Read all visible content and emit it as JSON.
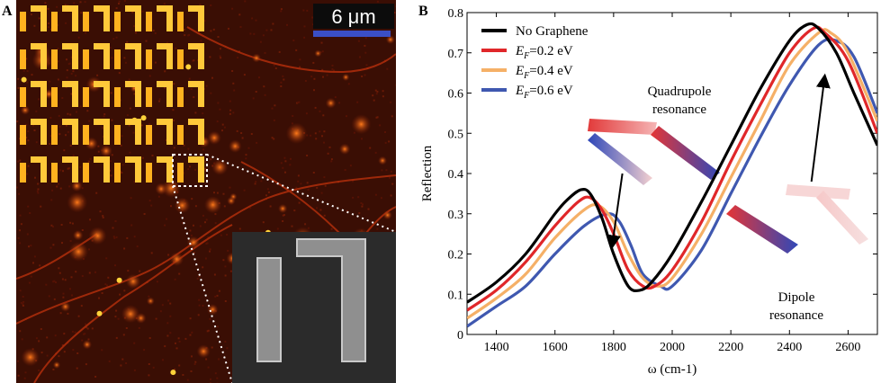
{
  "panel_a": {
    "letter": "A",
    "scale_bar_label": "6 μm",
    "scale_bar_color": "#3a4fc6"
  },
  "panel_b": {
    "letter": "B"
  },
  "chart_data": {
    "type": "line",
    "title": "",
    "xlabel": "ω (cm-1)",
    "ylabel": "Reflection",
    "xlim": [
      1300,
      2700
    ],
    "ylim": [
      0,
      0.8
    ],
    "xticks": [
      1400,
      1600,
      1800,
      2000,
      2200,
      2400,
      2600
    ],
    "yticks": [
      0,
      0.1,
      0.2,
      0.3,
      0.4,
      0.5,
      0.6,
      0.7,
      0.8
    ],
    "legend_position": "top-left",
    "series": [
      {
        "name": "No Graphene",
        "legend_prefix": "",
        "legend_value": "No Graphene",
        "color": "#000000",
        "x": [
          1300,
          1400,
          1500,
          1600,
          1650,
          1690,
          1720,
          1760,
          1800,
          1850,
          1890,
          1930,
          2000,
          2100,
          2200,
          2300,
          2400,
          2460,
          2500,
          2560,
          2620,
          2700
        ],
        "y": [
          0.08,
          0.13,
          0.2,
          0.3,
          0.34,
          0.36,
          0.35,
          0.29,
          0.2,
          0.12,
          0.11,
          0.13,
          0.2,
          0.33,
          0.47,
          0.61,
          0.73,
          0.77,
          0.76,
          0.7,
          0.6,
          0.47
        ]
      },
      {
        "name": "EF=0.2 eV",
        "legend_prefix": "E",
        "legend_sub": "F",
        "legend_value": "=0.2 eV",
        "color": "#e0272a",
        "x": [
          1300,
          1400,
          1500,
          1600,
          1680,
          1720,
          1760,
          1800,
          1850,
          1900,
          1940,
          2000,
          2100,
          2200,
          2300,
          2400,
          2480,
          2520,
          2600,
          2700
        ],
        "y": [
          0.06,
          0.11,
          0.18,
          0.27,
          0.33,
          0.34,
          0.31,
          0.25,
          0.16,
          0.12,
          0.12,
          0.16,
          0.28,
          0.43,
          0.57,
          0.7,
          0.76,
          0.75,
          0.68,
          0.5
        ]
      },
      {
        "name": "EF=0.4 eV",
        "legend_prefix": "E",
        "legend_sub": "F",
        "legend_value": "=0.4 eV",
        "color": "#f5b067",
        "x": [
          1300,
          1400,
          1500,
          1600,
          1700,
          1750,
          1800,
          1850,
          1900,
          1950,
          2000,
          2100,
          2200,
          2300,
          2400,
          2500,
          2540,
          2600,
          2700
        ],
        "y": [
          0.04,
          0.09,
          0.15,
          0.24,
          0.31,
          0.32,
          0.28,
          0.2,
          0.14,
          0.12,
          0.14,
          0.25,
          0.39,
          0.53,
          0.67,
          0.75,
          0.75,
          0.7,
          0.53
        ]
      },
      {
        "name": "EF=0.6 eV",
        "legend_prefix": "E",
        "legend_sub": "F",
        "legend_value": "=0.6 eV",
        "color": "#3f58b0",
        "x": [
          1300,
          1400,
          1500,
          1600,
          1700,
          1780,
          1820,
          1860,
          1900,
          1960,
          2000,
          2100,
          2200,
          2300,
          2400,
          2500,
          2560,
          2620,
          2700
        ],
        "y": [
          0.02,
          0.07,
          0.12,
          0.2,
          0.27,
          0.3,
          0.28,
          0.22,
          0.15,
          0.12,
          0.12,
          0.21,
          0.35,
          0.49,
          0.62,
          0.72,
          0.73,
          0.69,
          0.55
        ]
      }
    ],
    "annotations": [
      {
        "id": "quadrupole",
        "line1": "Quadrupole",
        "line2": "resonance",
        "arrow_from": [
          1830,
          0.4
        ],
        "arrow_to": [
          1795,
          0.22
        ]
      },
      {
        "id": "dipole",
        "line1": "Dipole",
        "line2": "resonance",
        "arrow_from": [
          2475,
          0.38
        ],
        "arrow_to": [
          2520,
          0.64
        ]
      }
    ]
  }
}
